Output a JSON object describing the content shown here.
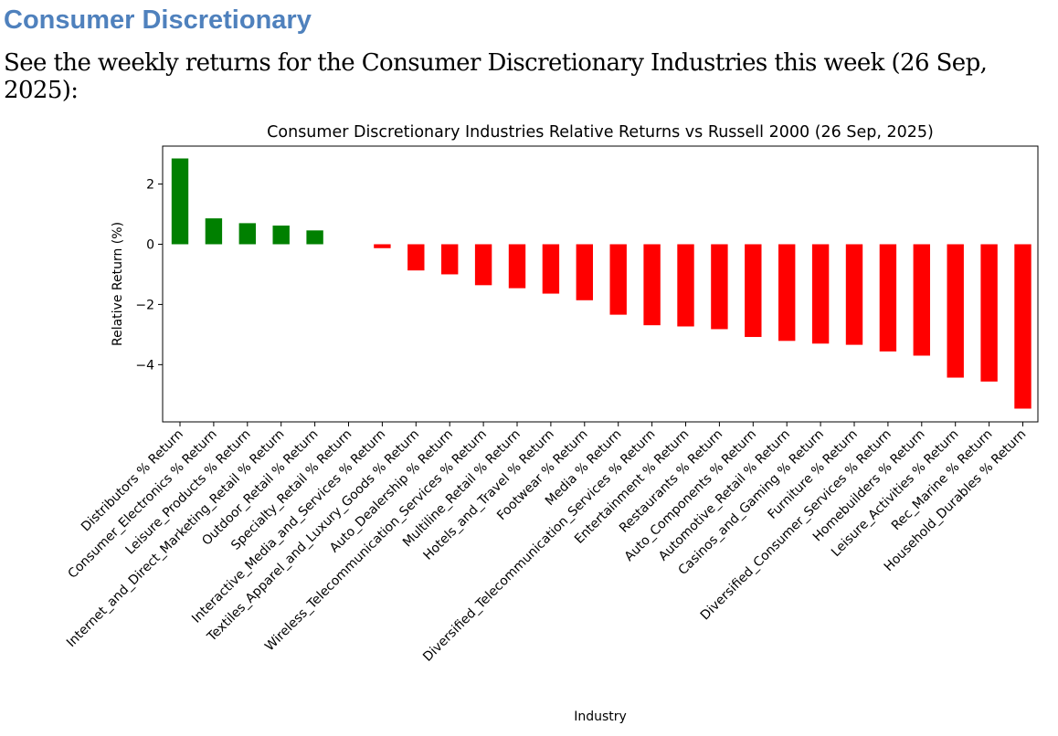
{
  "heading": "Consumer Discretionary",
  "intro": "See the weekly returns for the Consumer Discretionary Industries this week (26 Sep, 2025):",
  "chart_data": {
    "type": "bar",
    "title": "Consumer Discretionary Industries Relative Returns vs Russell 2000 (26 Sep, 2025)",
    "xlabel": "Industry",
    "ylabel": "Relative Return (%)",
    "ylim": [
      -5.9,
      3.26
    ],
    "yticks": [
      2,
      0,
      -2,
      -4
    ],
    "yticklabels": [
      "2",
      "0",
      "−2",
      "−4"
    ],
    "positive_color": "#008000",
    "negative_color": "#ff0000",
    "categories": [
      "Distributors % Return",
      "Consumer_Electronics % Return",
      "Leisure_Products % Return",
      "Internet_and_Direct_Marketing_Retail % Return",
      "Outdoor_Retail % Return",
      "Specialty_Retail % Return",
      "Interactive_Media_and_Services % Return",
      "Textiles_Apparel_and_Luxury_Goods % Return",
      "Auto_Dealership % Return",
      "Wireless_Telecommunication_Services % Return",
      "Multiline_Retail % Return",
      "Hotels_and_Travel % Return",
      "Footwear % Return",
      "Media % Return",
      "Diversified_Telecommunication_Services % Return",
      "Entertainment % Return",
      "Restaurants % Return",
      "Auto_Components % Return",
      "Automotive_Retail % Return",
      "Casinos_and_Gaming % Return",
      "Furniture % Return",
      "Diversified_Consumer_Services % Return",
      "Homebuilders % Return",
      "Leisure_Activities % Return",
      "Rec_Marine % Return",
      "Household_Durables % Return"
    ],
    "values": [
      2.85,
      0.86,
      0.7,
      0.62,
      0.46,
      0.0,
      -0.13,
      -0.87,
      -1.0,
      -1.36,
      -1.46,
      -1.64,
      -1.86,
      -2.34,
      -2.69,
      -2.73,
      -2.82,
      -3.08,
      -3.21,
      -3.3,
      -3.34,
      -3.56,
      -3.7,
      -4.43,
      -4.56,
      -5.46
    ]
  }
}
